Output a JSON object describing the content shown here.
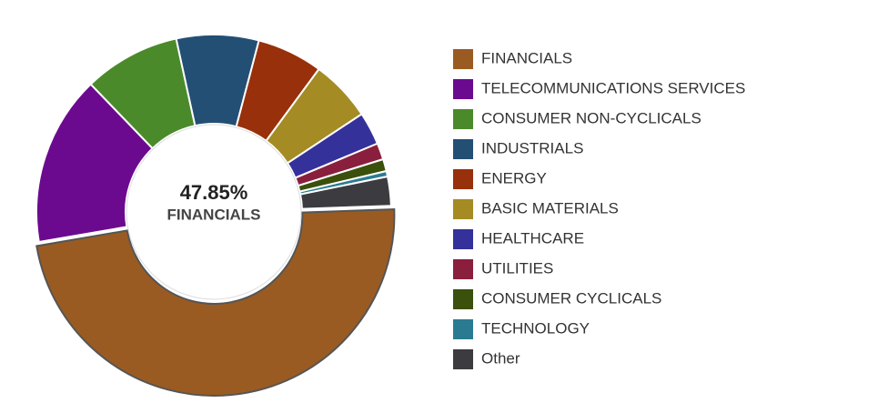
{
  "chart_data": {
    "type": "pie",
    "categories": [
      "FINANCIALS",
      "TELECOMMUNICATIONS SERVICES",
      "CONSUMER NON-CYCLICALS",
      "INDUSTRIALS",
      "ENERGY",
      "BASIC MATERIALS",
      "HEALTHCARE",
      "UTILITIES",
      "CONSUMER CYCLICALS",
      "TECHNOLOGY",
      "Other"
    ],
    "values": [
      47.85,
      15.5,
      8.8,
      7.5,
      6.0,
      5.6,
      3.0,
      1.5,
      1.1,
      0.5,
      2.65
    ],
    "colors": [
      "#9a5b22",
      "#6c0a8f",
      "#4b8a2b",
      "#244f74",
      "#98300b",
      "#a48b23",
      "#35319b",
      "#8a1f3d",
      "#3a500b",
      "#2a7b92",
      "#3b3b40"
    ],
    "center_value_label": "47.85%",
    "legend": "right"
  }
}
